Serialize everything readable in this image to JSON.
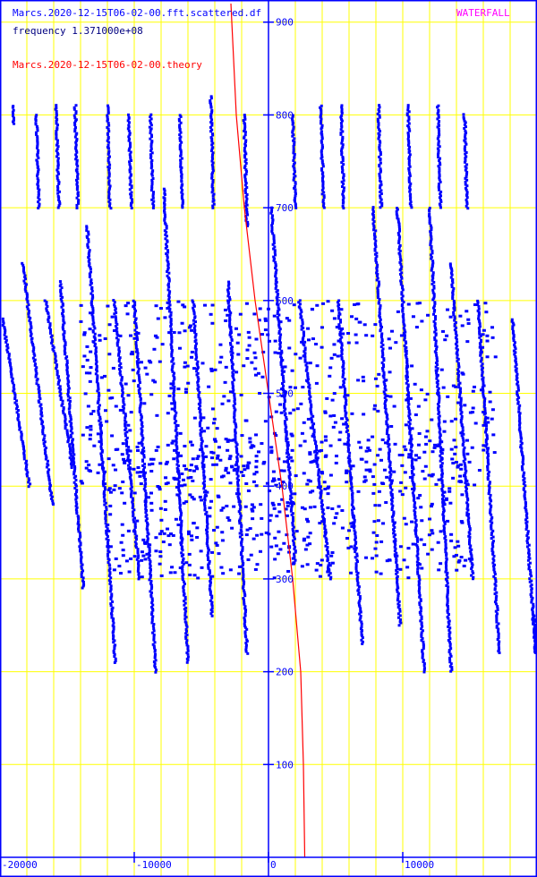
{
  "chart_data": {
    "type": "scatter",
    "title": "WATERFALL",
    "legend": [
      {
        "label": "Marcs.2020-12-15T06-02-00.fft.scattered.df",
        "color": "#0000ff"
      },
      {
        "label": "frequency 1.371000e+08",
        "color": "#000080"
      },
      {
        "label": "Marcs.2020-12-15T06-02-00.theory",
        "color": "#ff0000"
      }
    ],
    "xlim": [
      -20000,
      20000
    ],
    "ylim": [
      0,
      920
    ],
    "x_ticks": [
      {
        "value": -20000,
        "label": "-20000"
      },
      {
        "value": -10000,
        "label": "-10000"
      },
      {
        "value": 0,
        "label": "0"
      },
      {
        "value": 10000,
        "label": "10000"
      }
    ],
    "y_ticks": [
      {
        "value": 100,
        "label": "100"
      },
      {
        "value": 200,
        "label": "200"
      },
      {
        "value": 300,
        "label": "300"
      },
      {
        "value": 400,
        "label": "400"
      },
      {
        "value": 500,
        "label": "500"
      },
      {
        "value": 600,
        "label": "600"
      },
      {
        "value": 700,
        "label": "700"
      },
      {
        "value": 800,
        "label": "800"
      },
      {
        "value": 900,
        "label": "900"
      }
    ],
    "grid": true,
    "grid_minor_x_step": 2000,
    "grid_color": "#ffff00",
    "axis_color": "#0000ff",
    "scatter_color": "#0000ff",
    "theory_color": "#ff0000",
    "scatter_series": {
      "name": "Marcs.2020-12-15T06-02-00.fft.scattered.df",
      "segments": [
        {
          "x0": -19800,
          "y0": 580,
          "x1": -17800,
          "y1": 400
        },
        {
          "x0": -19000,
          "y0": 810,
          "x1": -19000,
          "y1": 790
        },
        {
          "x0": -18300,
          "y0": 640,
          "x1": -16100,
          "y1": 380
        },
        {
          "x0": -17300,
          "y0": 800,
          "x1": -17100,
          "y1": 700
        },
        {
          "x0": -16600,
          "y0": 600,
          "x1": -14600,
          "y1": 420
        },
        {
          "x0": -15800,
          "y0": 810,
          "x1": -15600,
          "y1": 700
        },
        {
          "x0": -15500,
          "y0": 620,
          "x1": -13800,
          "y1": 290
        },
        {
          "x0": -14400,
          "y0": 810,
          "x1": -14200,
          "y1": 700
        },
        {
          "x0": -13500,
          "y0": 680,
          "x1": -11400,
          "y1": 210
        },
        {
          "x0": -12000,
          "y0": 810,
          "x1": -11800,
          "y1": 700
        },
        {
          "x0": -11500,
          "y0": 600,
          "x1": -9600,
          "y1": 300
        },
        {
          "x0": -10400,
          "y0": 800,
          "x1": -10200,
          "y1": 700
        },
        {
          "x0": -10000,
          "y0": 600,
          "x1": -8400,
          "y1": 200
        },
        {
          "x0": -8800,
          "y0": 800,
          "x1": -8600,
          "y1": 700
        },
        {
          "x0": -7800,
          "y0": 720,
          "x1": -6000,
          "y1": 210
        },
        {
          "x0": -6600,
          "y0": 800,
          "x1": -6400,
          "y1": 700
        },
        {
          "x0": -5600,
          "y0": 600,
          "x1": -4200,
          "y1": 260
        },
        {
          "x0": -4300,
          "y0": 820,
          "x1": -4100,
          "y1": 700
        },
        {
          "x0": -3000,
          "y0": 620,
          "x1": -1600,
          "y1": 220
        },
        {
          "x0": -1800,
          "y0": 800,
          "x1": -1600,
          "y1": 680
        },
        {
          "x0": 200,
          "y0": 700,
          "x1": 2000,
          "y1": 320
        },
        {
          "x0": 1800,
          "y0": 800,
          "x1": 2000,
          "y1": 700
        },
        {
          "x0": 2300,
          "y0": 600,
          "x1": 4600,
          "y1": 300
        },
        {
          "x0": 3900,
          "y0": 810,
          "x1": 4100,
          "y1": 700
        },
        {
          "x0": 5200,
          "y0": 600,
          "x1": 7000,
          "y1": 230
        },
        {
          "x0": 5400,
          "y0": 810,
          "x1": 5600,
          "y1": 700
        },
        {
          "x0": 7800,
          "y0": 700,
          "x1": 9800,
          "y1": 250
        },
        {
          "x0": 8200,
          "y0": 810,
          "x1": 8400,
          "y1": 700
        },
        {
          "x0": 9600,
          "y0": 700,
          "x1": 11600,
          "y1": 200
        },
        {
          "x0": 10400,
          "y0": 810,
          "x1": 10600,
          "y1": 700
        },
        {
          "x0": 12000,
          "y0": 700,
          "x1": 13600,
          "y1": 200
        },
        {
          "x0": 12600,
          "y0": 810,
          "x1": 12800,
          "y1": 700
        },
        {
          "x0": 13600,
          "y0": 640,
          "x1": 15200,
          "y1": 300
        },
        {
          "x0": 14600,
          "y0": 800,
          "x1": 14800,
          "y1": 700
        },
        {
          "x0": 15600,
          "y0": 600,
          "x1": 17200,
          "y1": 220
        },
        {
          "x0": 18200,
          "y0": 580,
          "x1": 19900,
          "y1": 220
        },
        {
          "x0": 19800,
          "y0": 260,
          "x1": 19900,
          "y1": 220
        }
      ],
      "clusters": [
        {
          "x0": -14000,
          "x1": 17000,
          "y0": 400,
          "y1": 600
        },
        {
          "x0": -12000,
          "x1": 15000,
          "y0": 300,
          "y1": 450
        }
      ]
    },
    "theory_series": {
      "name": "Marcs.2020-12-15T06-02-00.theory",
      "points": [
        {
          "x": -2800,
          "y": 920
        },
        {
          "x": -2400,
          "y": 800
        },
        {
          "x": -1800,
          "y": 700
        },
        {
          "x": -1000,
          "y": 600
        },
        {
          "x": 0,
          "y": 500
        },
        {
          "x": 1000,
          "y": 400
        },
        {
          "x": 1800,
          "y": 300
        },
        {
          "x": 2400,
          "y": 200
        },
        {
          "x": 2600,
          "y": 100
        },
        {
          "x": 2700,
          "y": 0
        }
      ]
    }
  }
}
